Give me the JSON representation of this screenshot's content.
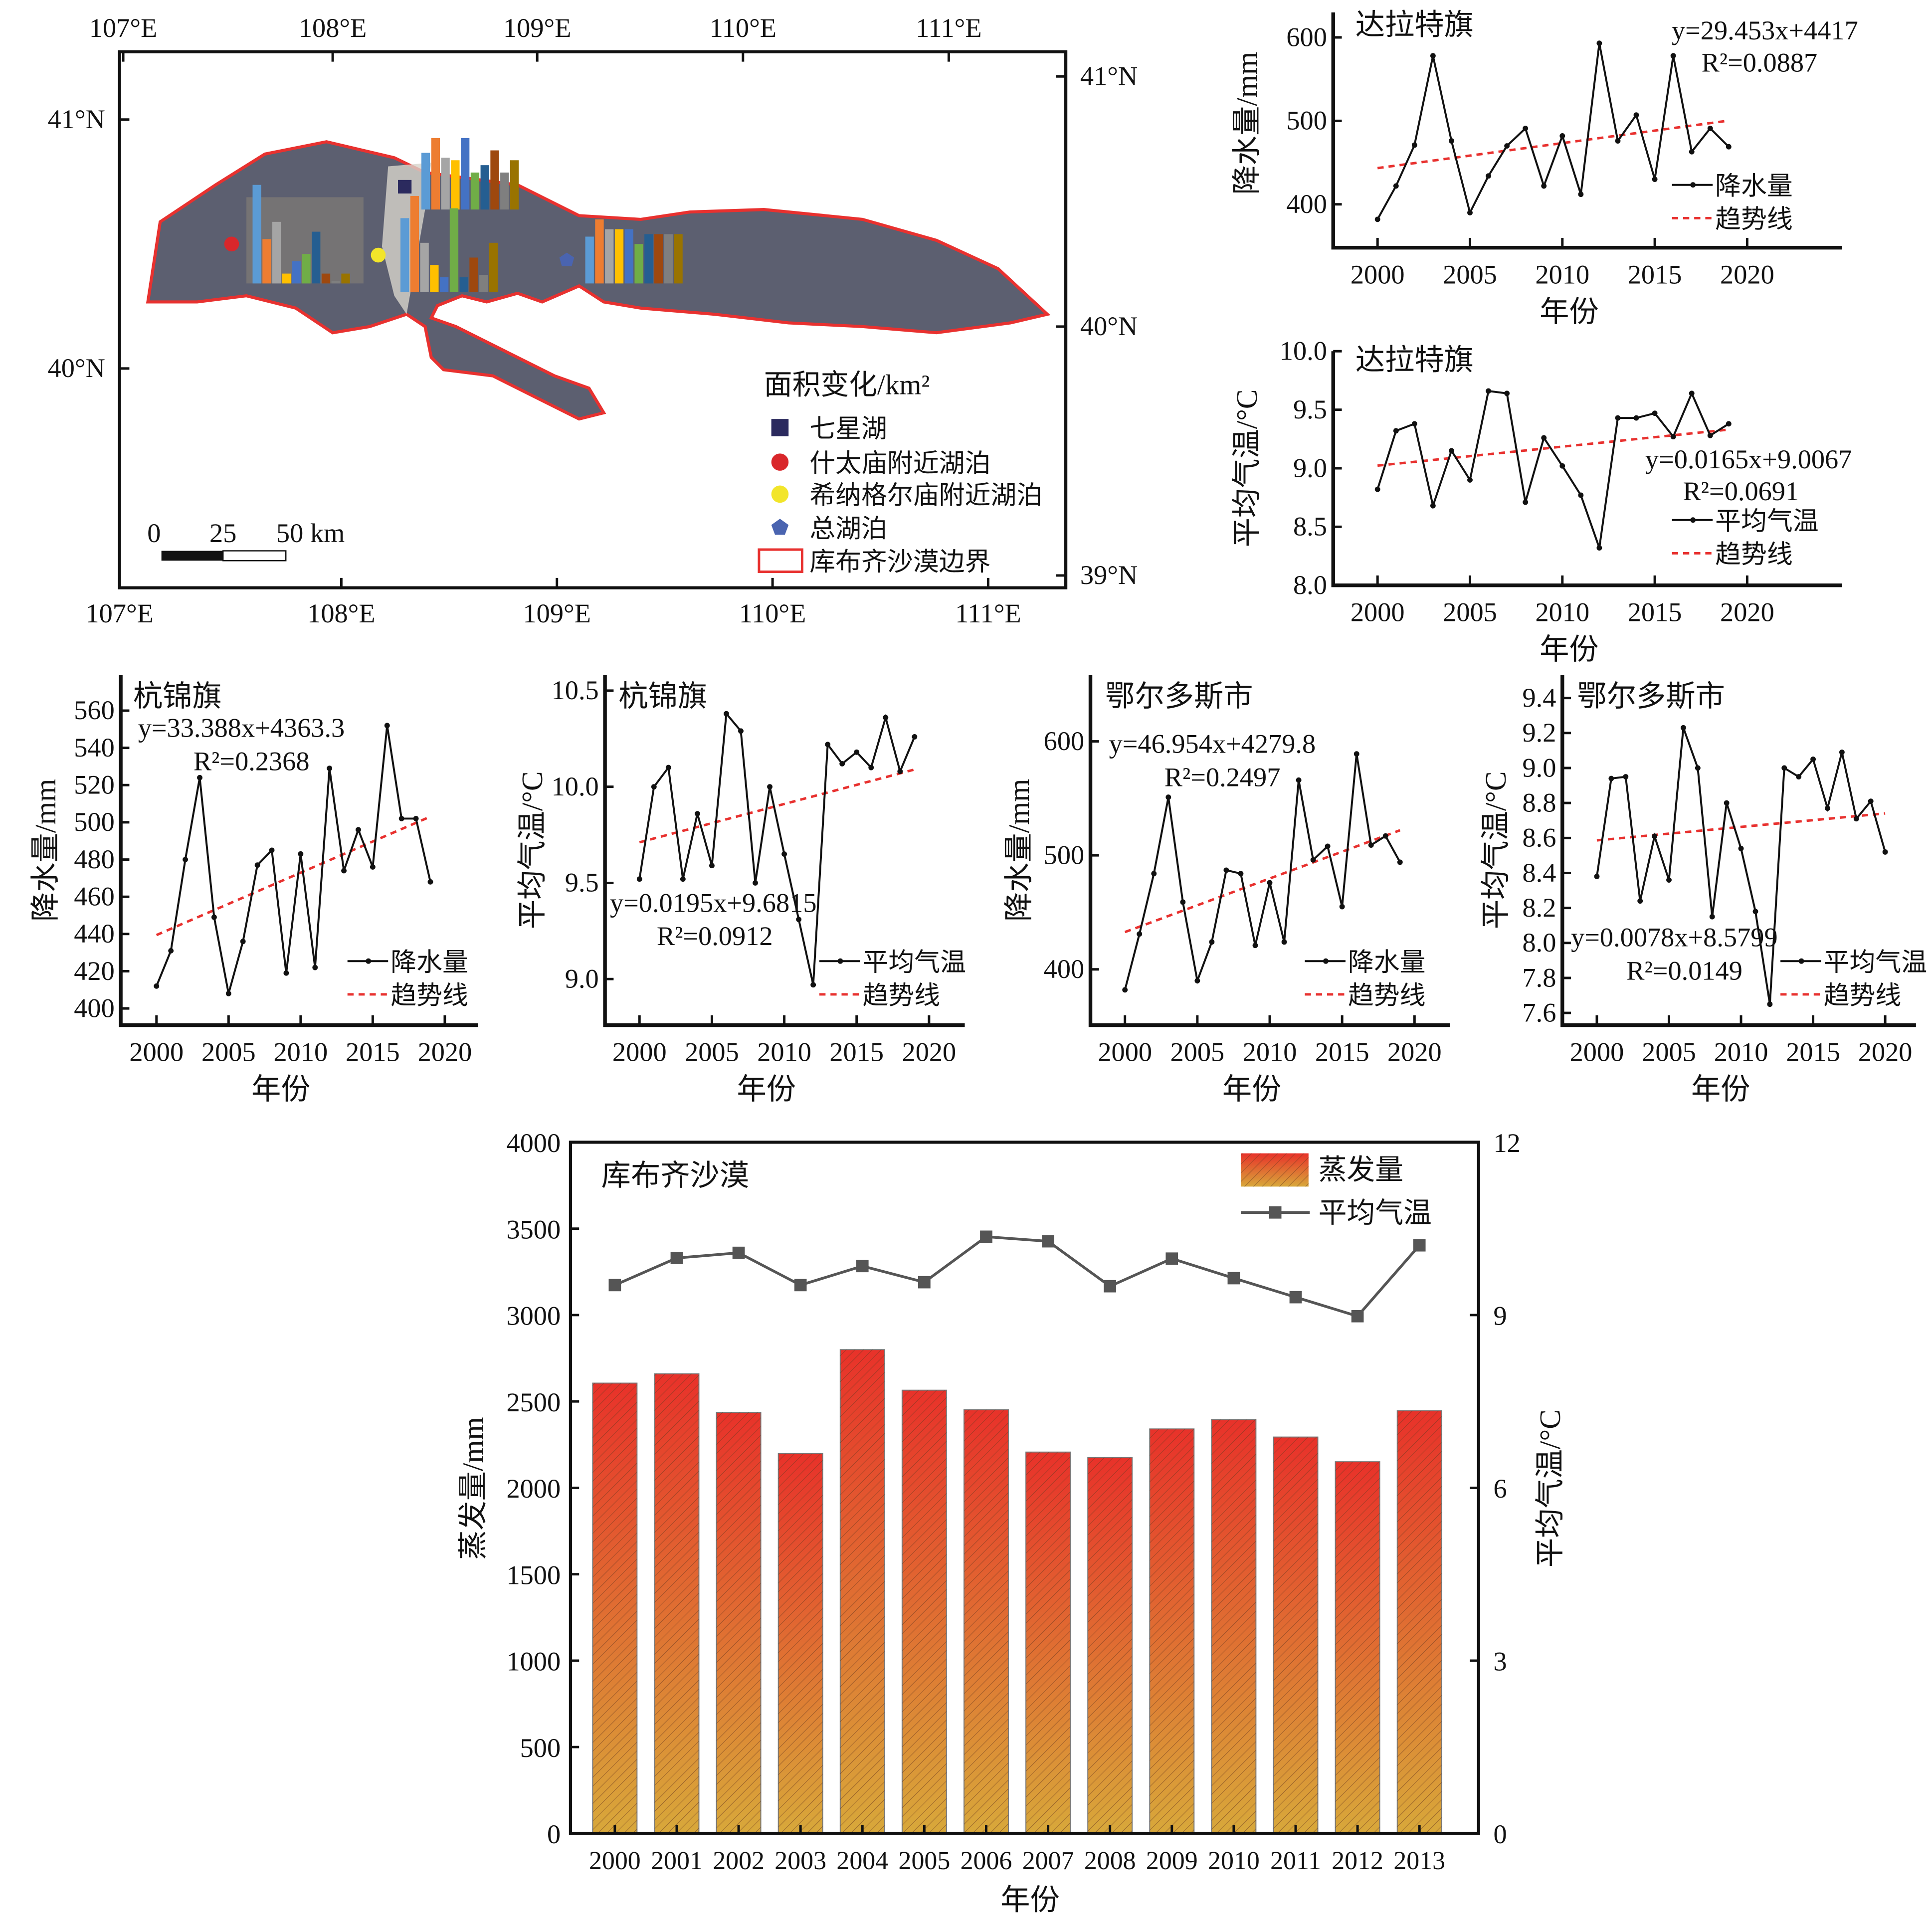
{
  "map": {
    "lon_top": [
      "107°E",
      "108°E",
      "109°E",
      "110°E",
      "111°E"
    ],
    "lon_bottom": [
      "107°E",
      "108°E",
      "109°E",
      "110°E",
      "111°E"
    ],
    "lat_left": [
      "41°N",
      "40°N"
    ],
    "lat_right": [
      "41°N",
      "40°N",
      "39°N"
    ],
    "legend_title": "面积变化/km²",
    "legend_items": [
      {
        "label": "七星湖",
        "marker": "square",
        "color": "#2b2a5e"
      },
      {
        "label": "什太庙附近湖泊",
        "marker": "circle",
        "color": "#d9272b"
      },
      {
        "label": "希纳格尔庙附近湖泊",
        "marker": "circle",
        "color": "#f2e52a"
      },
      {
        "label": "总湖泊",
        "marker": "pentagon",
        "color": "#4a64b0"
      },
      {
        "label": "库布齐沙漠边界",
        "marker": "outline-rect",
        "color": "#e8312f"
      }
    ],
    "scale_labels": [
      "0",
      "25",
      "50 km"
    ],
    "bar_colors": [
      "#5b9bd5",
      "#ed7d31",
      "#a5a5a5",
      "#ffc000",
      "#4472c4",
      "#70ad47",
      "#255e91",
      "#9e480e",
      "#7f7f7f",
      "#997300"
    ]
  },
  "chart_data": [
    {
      "type": "line",
      "title": "达拉特旗",
      "xlabel": "年份",
      "ylabel": "降水量/mm",
      "x_ticks": [
        2000,
        2005,
        2010,
        2015,
        2020
      ],
      "y_ticks": [
        400,
        500,
        600
      ],
      "ylim": [
        348,
        630
      ],
      "x": [
        2000,
        2001,
        2002,
        2003,
        2004,
        2005,
        2006,
        2007,
        2008,
        2009,
        2010,
        2011,
        2012,
        2013,
        2014,
        2015,
        2016,
        2017,
        2018,
        2019
      ],
      "series": [
        {
          "name": "降水量",
          "color": "#111111",
          "values": [
            382,
            422,
            471,
            578,
            476,
            390,
            434,
            470,
            491,
            422,
            482,
            412,
            593,
            476,
            507,
            430,
            578,
            463,
            491,
            469
          ]
        },
        {
          "name": "趋势线",
          "color": "#e8312f",
          "style": "dashed"
        }
      ],
      "equation": "y=29.453x+4417",
      "r2": "R²=0.0887"
    },
    {
      "type": "line",
      "title": "达拉特旗",
      "xlabel": "年份",
      "ylabel": "平均气温/°C",
      "x_ticks": [
        2000,
        2005,
        2010,
        2015,
        2020
      ],
      "y_ticks": [
        "8.0",
        "8.5",
        "9.0",
        "9.5",
        "10.0"
      ],
      "ylim": [
        8.0,
        10.0
      ],
      "x": [
        2000,
        2001,
        2002,
        2003,
        2004,
        2005,
        2006,
        2007,
        2008,
        2009,
        2010,
        2011,
        2012,
        2013,
        2014,
        2015,
        2016,
        2017,
        2018,
        2019
      ],
      "series": [
        {
          "name": "平均气温",
          "color": "#111111",
          "values": [
            8.82,
            9.32,
            9.38,
            8.68,
            9.15,
            8.9,
            9.66,
            9.64,
            8.71,
            9.26,
            9.02,
            8.77,
            8.32,
            9.43,
            9.43,
            9.47,
            9.27,
            9.64,
            9.28,
            9.38
          ]
        },
        {
          "name": "趋势线",
          "color": "#e8312f",
          "style": "dashed"
        }
      ],
      "equation": "y=0.0165x+9.0067",
      "r2": "R²=0.0691"
    },
    {
      "type": "line",
      "title": "杭锦旗",
      "xlabel": "年份",
      "ylabel": "降水量/mm",
      "x_ticks": [
        2000,
        2005,
        2010,
        2015,
        2020
      ],
      "y_ticks": [
        400,
        420,
        440,
        460,
        480,
        500,
        520,
        540,
        560
      ],
      "ylim": [
        391,
        579
      ],
      "x": [
        2000,
        2001,
        2002,
        2003,
        2004,
        2005,
        2006,
        2007,
        2008,
        2009,
        2010,
        2011,
        2012,
        2013,
        2014,
        2015,
        2016,
        2017,
        2018,
        2019
      ],
      "series": [
        {
          "name": "降水量",
          "color": "#111111",
          "values": [
            412,
            431,
            480,
            524,
            449,
            408,
            436,
            477,
            485,
            419,
            483,
            422,
            529,
            474,
            496,
            476,
            552,
            502,
            502,
            468
          ]
        },
        {
          "name": "趋势线",
          "color": "#e8312f",
          "style": "dashed"
        }
      ],
      "equation": "y=33.388x+4363.3",
      "r2": "R²=0.2368"
    },
    {
      "type": "line",
      "title": "杭锦旗",
      "xlabel": "年份",
      "ylabel": "平均气温/°C",
      "x_ticks": [
        2000,
        2005,
        2010,
        2015,
        2020
      ],
      "y_ticks": [
        "9.0",
        "9.5",
        "10.0",
        "10.5"
      ],
      "ylim": [
        8.76,
        10.58
      ],
      "x": [
        2000,
        2001,
        2002,
        2003,
        2004,
        2005,
        2006,
        2007,
        2008,
        2009,
        2010,
        2011,
        2012,
        2013,
        2014,
        2015,
        2016,
        2017,
        2018,
        2019
      ],
      "series": [
        {
          "name": "平均气温",
          "color": "#111111",
          "values": [
            9.52,
            10.0,
            10.1,
            9.52,
            9.86,
            9.59,
            10.38,
            10.29,
            9.5,
            10.0,
            9.65,
            9.31,
            8.97,
            10.22,
            10.12,
            10.18,
            10.1,
            10.36,
            10.08,
            10.26
          ]
        },
        {
          "name": "趋势线",
          "color": "#e8312f",
          "style": "dashed"
        }
      ],
      "equation": "y=0.0195x+9.6815",
      "r2": "R²=0.0912"
    },
    {
      "type": "line",
      "title": "鄂尔多斯市",
      "xlabel": "年份",
      "ylabel": "降水量/mm",
      "x_ticks": [
        2000,
        2005,
        2010,
        2015,
        2020
      ],
      "y_ticks": [
        400,
        500,
        600
      ],
      "ylim": [
        351,
        658
      ],
      "x": [
        2000,
        2001,
        2002,
        2003,
        2004,
        2005,
        2006,
        2007,
        2008,
        2009,
        2010,
        2011,
        2012,
        2013,
        2014,
        2015,
        2016,
        2017,
        2018,
        2019
      ],
      "series": [
        {
          "name": "降水量",
          "color": "#111111",
          "values": [
            382,
            431,
            484,
            551,
            459,
            390,
            424,
            487,
            484,
            421,
            476,
            424,
            566,
            496,
            508,
            455,
            589,
            509,
            517,
            494
          ]
        },
        {
          "name": "趋势线",
          "color": "#e8312f",
          "style": "dashed"
        }
      ],
      "equation": "y=46.954x+4279.8",
      "r2": "R²=0.2497"
    },
    {
      "type": "line",
      "title": "鄂尔多斯市",
      "xlabel": "年份",
      "ylabel": "平均气温/°C",
      "x_ticks": [
        2000,
        2005,
        2010,
        2015,
        2020
      ],
      "y_ticks": [
        "7.6",
        "7.8",
        "8.0",
        "8.2",
        "8.4",
        "8.6",
        "8.8",
        "9.0",
        "9.2",
        "9.4"
      ],
      "ylim": [
        7.53,
        9.53
      ],
      "x": [
        2000,
        2001,
        2002,
        2003,
        2004,
        2005,
        2006,
        2007,
        2008,
        2009,
        2010,
        2011,
        2012,
        2013,
        2014,
        2015,
        2016,
        2017,
        2018,
        2019,
        2020
      ],
      "series": [
        {
          "name": "平均气温",
          "color": "#111111",
          "values": [
            8.38,
            8.94,
            8.95,
            8.24,
            8.61,
            8.36,
            9.23,
            9.0,
            8.15,
            8.8,
            8.54,
            8.18,
            7.65,
            9.0,
            8.95,
            9.05,
            8.77,
            9.09,
            8.71,
            8.81,
            8.52
          ]
        },
        {
          "name": "趋势线",
          "color": "#e8312f",
          "style": "dashed"
        }
      ],
      "equation": "y=0.0078x+8.5799",
      "r2": "R²=0.0149"
    },
    {
      "type": "bar",
      "title": "库布齐沙漠",
      "xlabel": "年份",
      "ylabel": "蒸发量/mm",
      "ylabel_right": "平均气温/°C",
      "categories": [
        "2000",
        "2001",
        "2002",
        "2003",
        "2004",
        "2005",
        "2006",
        "2007",
        "2008",
        "2009",
        "2010",
        "2011",
        "2012",
        "2013"
      ],
      "y_ticks": [
        0,
        500,
        1000,
        1500,
        2000,
        2500,
        3000,
        3500,
        4000
      ],
      "ylim": [
        0,
        4000
      ],
      "y2_ticks": [
        0,
        3,
        6,
        9,
        12
      ],
      "y2lim": [
        0,
        12
      ],
      "series": [
        {
          "name": "蒸发量",
          "type": "bar",
          "axis": "left",
          "color_top": "#e8322a",
          "color_bottom": "#d8a83a",
          "values": [
            2606,
            2660,
            2437,
            2198,
            2800,
            2565,
            2452,
            2207,
            2175,
            2341,
            2395,
            2294,
            2151,
            2446
          ]
        },
        {
          "name": "平均气温",
          "type": "line",
          "axis": "right",
          "color": "#555555",
          "marker": "square",
          "values": [
            9.52,
            9.99,
            10.08,
            9.52,
            9.85,
            9.57,
            10.36,
            10.28,
            9.5,
            9.98,
            9.64,
            9.31,
            8.98,
            10.21
          ]
        }
      ],
      "legend": "top-right"
    }
  ]
}
